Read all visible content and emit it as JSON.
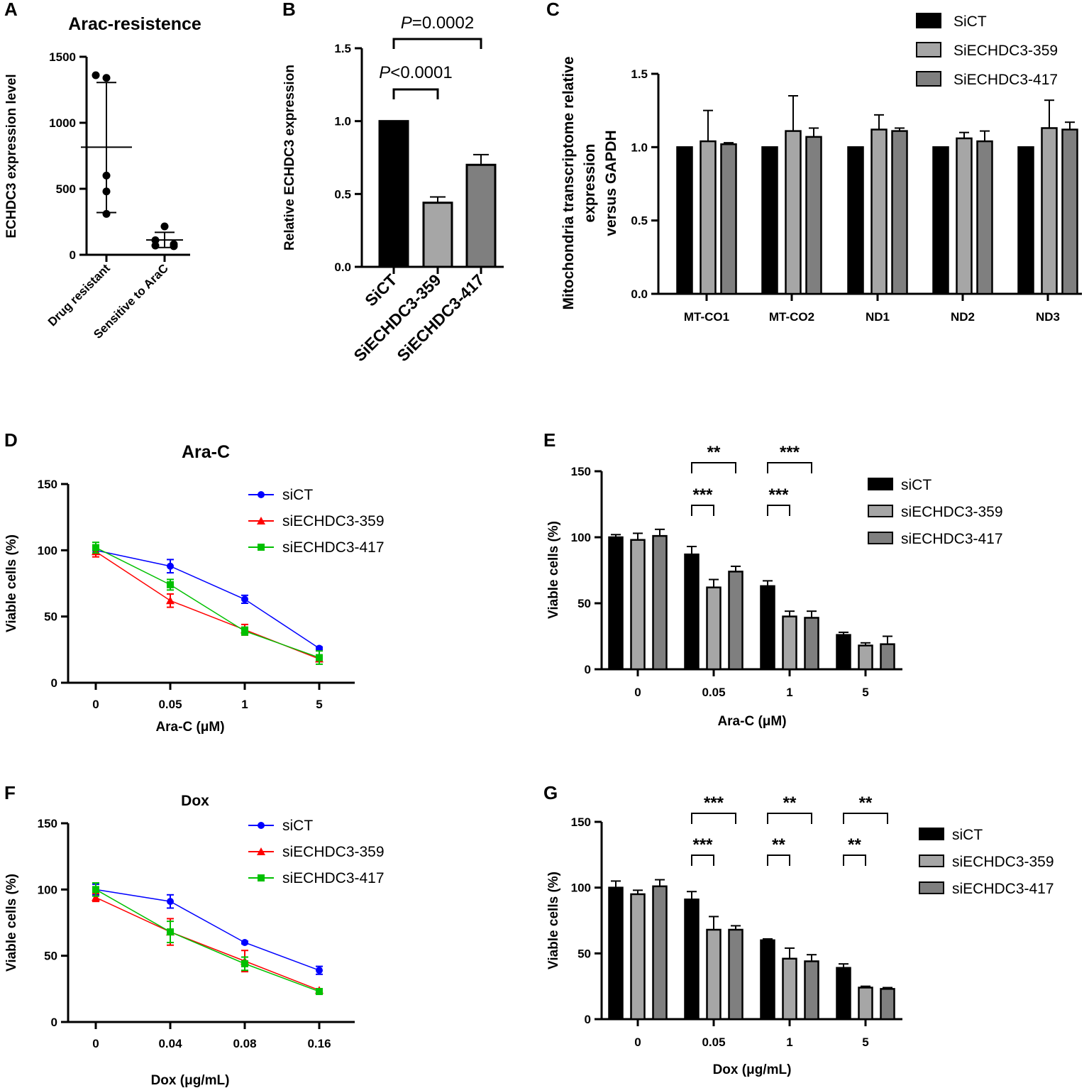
{
  "chart_data": [
    {
      "panel": "A",
      "type": "scatter",
      "title": "Arac-resistence",
      "xlabel": "",
      "ylabel": "ECHDC3 expression level",
      "ylim": [
        0,
        1500
      ],
      "yticks": [
        "0",
        "500",
        "1000",
        "1500"
      ],
      "categories": [
        "Drug resistant",
        "Sensitive to AraC"
      ],
      "groups": [
        {
          "name": "Drug resistant",
          "values": [
            1360,
            1340,
            600,
            480,
            310
          ],
          "mean": 815,
          "sd_low": 320,
          "sd_high": 1305
        },
        {
          "name": "Sensitive to AraC",
          "values": [
            215,
            110,
            80,
            70,
            65
          ],
          "mean": 112,
          "sd_low": 55,
          "sd_high": 170
        }
      ]
    },
    {
      "panel": "B",
      "type": "bar",
      "title": "",
      "xlabel": "",
      "ylabel": "Relative ECHDC3 expression",
      "ylim": [
        0,
        1.5
      ],
      "yticks": [
        "0.0",
        "0.5",
        "1.0",
        "1.5"
      ],
      "categories": [
        "SiCT",
        "SiECHDC3-359",
        "SiECHDC3-417"
      ],
      "values": [
        1.0,
        0.44,
        0.7
      ],
      "errors": [
        0,
        0.04,
        0.07
      ],
      "colors": [
        "#000000",
        "#a6a6a6",
        "#7f7f7f"
      ],
      "annotations": [
        {
          "prefix": "P",
          "text": "<0.0001"
        },
        {
          "prefix": "P",
          "text": "=0.0002"
        }
      ]
    },
    {
      "panel": "C",
      "type": "bar",
      "ylabel_lines": [
        "Mitochondria transcriptome relative",
        "expression",
        "versus GAPDH"
      ],
      "ylim": [
        0,
        1.5
      ],
      "yticks": [
        "0.0",
        "0.5",
        "1.0",
        "1.5"
      ],
      "categories": [
        "MT-CO1",
        "MT-CO2",
        "ND1",
        "ND2",
        "ND3"
      ],
      "series": [
        {
          "name": "SiCT",
          "color": "#000000",
          "values": [
            1.0,
            1.0,
            1.0,
            1.0,
            1.0
          ],
          "errors": [
            0,
            0,
            0,
            0,
            0
          ]
        },
        {
          "name": "SiECHDC3-359",
          "color": "#a6a6a6",
          "values": [
            1.04,
            1.11,
            1.12,
            1.06,
            1.13
          ],
          "errors": [
            0.21,
            0.24,
            0.1,
            0.04,
            0.19
          ]
        },
        {
          "name": "SiECHDC3-417",
          "color": "#7f7f7f",
          "values": [
            1.02,
            1.07,
            1.11,
            1.04,
            1.12
          ],
          "errors": [
            0.01,
            0.06,
            0.02,
            0.07,
            0.05
          ]
        }
      ]
    },
    {
      "panel": "D",
      "type": "line",
      "title": "Ara-C",
      "xlabel": "Ara-C (μM)",
      "ylabel": "Viable cells (%)",
      "ylim": [
        0,
        150
      ],
      "yticks": [
        "0",
        "50",
        "100",
        "150"
      ],
      "categories": [
        "0",
        "0.05",
        "1",
        "5"
      ],
      "series": [
        {
          "name": "siCT",
          "color": "#0000ff",
          "marker": "circle",
          "values": [
            100,
            88,
            63,
            26
          ],
          "errors": [
            3,
            5,
            3,
            1
          ]
        },
        {
          "name": "siECHDC3-359",
          "color": "#ff0000",
          "marker": "triangle",
          "values": [
            99,
            62,
            40,
            18
          ],
          "errors": [
            4,
            5,
            4,
            2
          ]
        },
        {
          "name": "siECHDC3-417",
          "color": "#00c000",
          "marker": "square",
          "values": [
            102,
            74,
            39,
            19
          ],
          "errors": [
            4,
            4,
            3,
            5
          ]
        }
      ]
    },
    {
      "panel": "E",
      "type": "bar",
      "xlabel": "Ara-C (μM)",
      "ylabel": "Viable cells (%)",
      "ylim": [
        0,
        150
      ],
      "yticks": [
        "0",
        "50",
        "100",
        "150"
      ],
      "categories": [
        "0",
        "0.05",
        "1",
        "5"
      ],
      "series": [
        {
          "name": "siCT",
          "color": "#000000",
          "values": [
            100,
            87,
            63,
            26
          ],
          "errors": [
            2,
            6,
            4,
            2
          ]
        },
        {
          "name": "siECHDC3-359",
          "color": "#a6a6a6",
          "values": [
            98,
            62,
            40,
            18
          ],
          "errors": [
            5,
            6,
            4,
            2
          ]
        },
        {
          "name": "siECHDC3-417",
          "color": "#7f7f7f",
          "values": [
            101,
            74,
            39,
            19
          ],
          "errors": [
            5,
            4,
            5,
            6
          ]
        }
      ],
      "significance": [
        {
          "text": "***",
          "group": 1,
          "to": 1,
          "level": "low"
        },
        {
          "text": "**",
          "group": 1,
          "to": 2,
          "level": "high"
        },
        {
          "text": "***",
          "group": 2,
          "to": 1,
          "level": "low"
        },
        {
          "text": "***",
          "group": 2,
          "to": 2,
          "level": "high"
        }
      ]
    },
    {
      "panel": "F",
      "type": "line",
      "title": "Dox",
      "xlabel": "Dox (μg/mL)",
      "ylabel": "Viable cells (%)",
      "ylim": [
        0,
        150
      ],
      "yticks": [
        "0",
        "50",
        "100",
        "150"
      ],
      "categories": [
        "0",
        "0.04",
        "0.08",
        "0.16"
      ],
      "series": [
        {
          "name": "siCT",
          "color": "#0000ff",
          "marker": "circle",
          "values": [
            100,
            91,
            60,
            39
          ],
          "errors": [
            4,
            5,
            1,
            3
          ]
        },
        {
          "name": "siECHDC3-359",
          "color": "#ff0000",
          "marker": "triangle",
          "values": [
            94,
            68,
            46,
            24
          ],
          "errors": [
            3,
            10,
            8,
            1
          ]
        },
        {
          "name": "siECHDC3-417",
          "color": "#00c000",
          "marker": "square",
          "values": [
            100,
            68,
            44,
            23
          ],
          "errors": [
            5,
            8,
            5,
            1
          ]
        }
      ]
    },
    {
      "panel": "G",
      "type": "bar",
      "xlabel": "Dox (μg/mL)",
      "ylabel": "Viable cells (%)",
      "ylim": [
        0,
        150
      ],
      "yticks": [
        "0",
        "50",
        "100",
        "150"
      ],
      "categories": [
        "0",
        "0.05",
        "1",
        "5"
      ],
      "series": [
        {
          "name": "siCT",
          "color": "#000000",
          "values": [
            100,
            91,
            60,
            39
          ],
          "errors": [
            5,
            6,
            1,
            3
          ]
        },
        {
          "name": "siECHDC3-359",
          "color": "#a6a6a6",
          "values": [
            95,
            68,
            46,
            24
          ],
          "errors": [
            3,
            10,
            8,
            1
          ]
        },
        {
          "name": "siECHDC3-417",
          "color": "#7f7f7f",
          "values": [
            101,
            68,
            44,
            23
          ],
          "errors": [
            5,
            3,
            5,
            1
          ]
        }
      ],
      "significance": [
        {
          "text": "***",
          "group": 1,
          "to": 1,
          "level": "low"
        },
        {
          "text": "***",
          "group": 1,
          "to": 2,
          "level": "high"
        },
        {
          "text": "**",
          "group": 2,
          "to": 1,
          "level": "low"
        },
        {
          "text": "**",
          "group": 2,
          "to": 2,
          "level": "high"
        },
        {
          "text": "**",
          "group": 3,
          "to": 1,
          "level": "low"
        },
        {
          "text": "**",
          "group": 3,
          "to": 2,
          "level": "high"
        }
      ]
    }
  ]
}
